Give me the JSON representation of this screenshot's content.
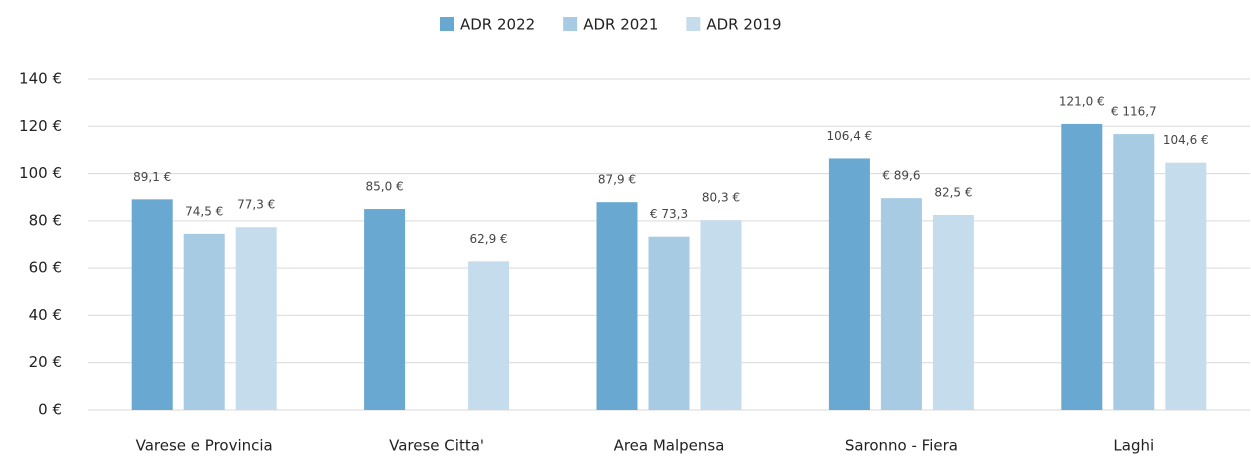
{
  "chart_data": {
    "type": "bar",
    "categories": [
      "Varese e Provincia",
      "Varese Citta'",
      "Area Malpensa",
      "Saronno - Fiera",
      "Laghi"
    ],
    "series": [
      {
        "name": "ADR 2022",
        "color": "#69a8d0",
        "values": [
          89.1,
          85.0,
          87.9,
          106.4,
          121.0
        ],
        "value_labels": [
          "89,1 €",
          "85,0 €",
          "87,9 €",
          "106,4 €",
          "121,0 €"
        ]
      },
      {
        "name": "ADR 2021",
        "color": "#a6cbe3",
        "values": [
          74.5,
          null,
          73.3,
          89.6,
          116.7
        ],
        "value_labels": [
          "74,5 €",
          null,
          "€ 73,3",
          "€ 89,6",
          "€ 116,7"
        ]
      },
      {
        "name": "ADR 2019",
        "color": "#c5dcec",
        "values": [
          77.3,
          62.9,
          80.3,
          82.5,
          104.6
        ],
        "value_labels": [
          "77,3 €",
          "62,9 €",
          "80,3 €",
          "82,5 €",
          "104,6 €"
        ]
      }
    ],
    "ylim": [
      0,
      140
    ],
    "yticks": [
      {
        "value": 0,
        "label": "0 €"
      },
      {
        "value": 20,
        "label": "20 €"
      },
      {
        "value": 40,
        "label": "40 €"
      },
      {
        "value": 60,
        "label": "60 €"
      },
      {
        "value": 80,
        "label": "80 €"
      },
      {
        "value": 100,
        "label": "100 €"
      },
      {
        "value": 120,
        "label": "120 €"
      },
      {
        "value": 140,
        "label": "140 €"
      }
    ],
    "grid": true,
    "legend": "top"
  }
}
